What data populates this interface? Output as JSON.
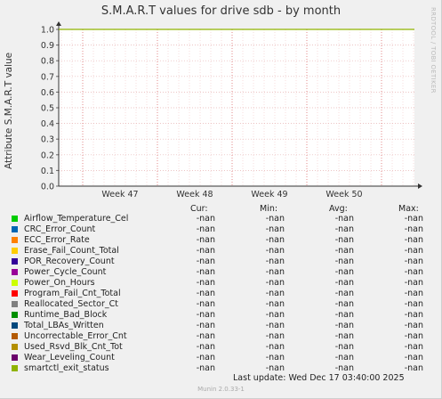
{
  "chart_data": {
    "type": "line",
    "title": "S.M.A.R.T values for drive sdb - by month",
    "ylabel": "Attribute S.M.A.R.T value",
    "ylim": [
      0,
      1
    ],
    "yticks": [
      "0.0",
      "0.1",
      "0.2",
      "0.3",
      "0.4",
      "0.5",
      "0.6",
      "0.7",
      "0.8",
      "0.9",
      "1.0"
    ],
    "xticks": [
      "Week 47",
      "Week 48",
      "Week 49",
      "Week 50"
    ],
    "grid": true,
    "series": [
      {
        "name": "Airflow_Temperature_Cel",
        "color": "#00cc00",
        "cur": "-nan",
        "min": "-nan",
        "avg": "-nan",
        "max": "-nan"
      },
      {
        "name": "CRC_Error_Count",
        "color": "#0066b3",
        "cur": "-nan",
        "min": "-nan",
        "avg": "-nan",
        "max": "-nan"
      },
      {
        "name": "ECC_Error_Rate",
        "color": "#ff8000",
        "cur": "-nan",
        "min": "-nan",
        "avg": "-nan",
        "max": "-nan"
      },
      {
        "name": "Erase_Fail_Count_Total",
        "color": "#ffcc00",
        "cur": "-nan",
        "min": "-nan",
        "avg": "-nan",
        "max": "-nan"
      },
      {
        "name": "POR_Recovery_Count",
        "color": "#330099",
        "cur": "-nan",
        "min": "-nan",
        "avg": "-nan",
        "max": "-nan"
      },
      {
        "name": "Power_Cycle_Count",
        "color": "#990099",
        "cur": "-nan",
        "min": "-nan",
        "avg": "-nan",
        "max": "-nan"
      },
      {
        "name": "Power_On_Hours",
        "color": "#ccff00",
        "cur": "-nan",
        "min": "-nan",
        "avg": "-nan",
        "max": "-nan"
      },
      {
        "name": "Program_Fail_Cnt_Total",
        "color": "#ff0000",
        "cur": "-nan",
        "min": "-nan",
        "avg": "-nan",
        "max": "-nan"
      },
      {
        "name": "Reallocated_Sector_Ct",
        "color": "#808080",
        "cur": "-nan",
        "min": "-nan",
        "avg": "-nan",
        "max": "-nan"
      },
      {
        "name": "Runtime_Bad_Block",
        "color": "#008f00",
        "cur": "-nan",
        "min": "-nan",
        "avg": "-nan",
        "max": "-nan"
      },
      {
        "name": "Total_LBAs_Written",
        "color": "#00487d",
        "cur": "-nan",
        "min": "-nan",
        "avg": "-nan",
        "max": "-nan"
      },
      {
        "name": "Uncorrectable_Error_Cnt",
        "color": "#b35a00",
        "cur": "-nan",
        "min": "-nan",
        "avg": "-nan",
        "max": "-nan"
      },
      {
        "name": "Used_Rsvd_Blk_Cnt_Tot",
        "color": "#b38f00",
        "cur": "-nan",
        "min": "-nan",
        "avg": "-nan",
        "max": "-nan"
      },
      {
        "name": "Wear_Leveling_Count",
        "color": "#6b006b",
        "cur": "-nan",
        "min": "-nan",
        "avg": "-nan",
        "max": "-nan"
      },
      {
        "name": "smartctl_exit_status",
        "color": "#8fb300",
        "cur": "-nan",
        "min": "-nan",
        "avg": "-nan",
        "max": "-nan"
      }
    ],
    "line_value": 1.0,
    "line_color": "#8fb300"
  },
  "legend_headers": {
    "cur": "Cur:",
    "min": "Min:",
    "avg": "Avg:",
    "max": "Max:"
  },
  "last_update": "Last update:  Wed Dec 17 03:40:00 2025",
  "watermark": "RRDTOOL / TOBI OETIKER",
  "version": "Munin 2.0.33-1"
}
